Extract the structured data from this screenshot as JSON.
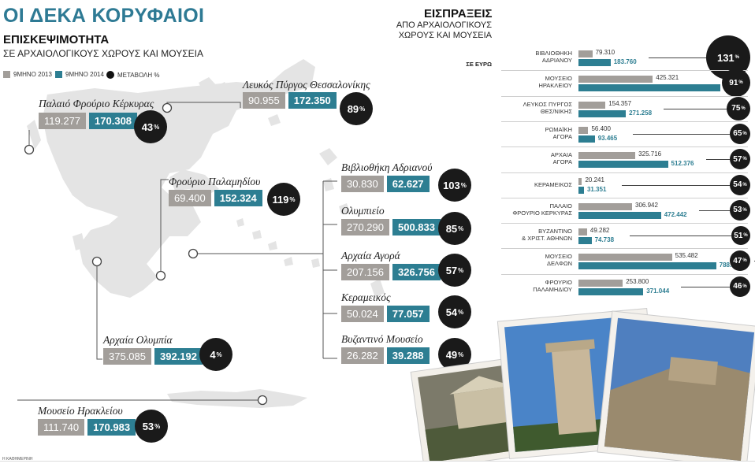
{
  "title": "ΟΙ ΔΕΚΑ ΚΟΡΥΦΑΙΟΙ",
  "visits": {
    "title": "ΕΠΙΣΚΕΨΙΜΟΤΗΤΑ",
    "subtitle": "ΣΕ ΑΡΧΑΙΟΛΟΓΙΚΟΥΣ ΧΩΡΟΥΣ ΚΑΙ ΜΟΥΣΕΙΑ",
    "legend": {
      "y2013": "9ΜΗΝΟ 2013",
      "y2014": "9ΜΗΝΟ 2014",
      "change": "ΜΕΤΑΒΟΛΗ %"
    }
  },
  "revenue": {
    "title": "ΕΙΣΠΡΑΞΕΙΣ",
    "subtitle": "ΑΠΟ ΑΡΧΑΙΟΛΟΓΙΚΟΥΣ ΧΩΡΟΥΣ ΚΑΙ ΜΟΥΣΕΙΑ",
    "unit": "ΣΕ ΕΥΡΩ"
  },
  "footer": "Η ΚΑΘΗΜΕΡΙΝΗ",
  "colors": {
    "accent": "#2d7e92",
    "y2013": "#a29e9a",
    "change": "#1a1a1a",
    "title": "#2e7a94"
  },
  "chart_data": [
    {
      "type": "bar",
      "title": "ΕΠΙΣΚΕΨΙΜΟΤΗΤΑ",
      "subtitle": "ΣΕ ΑΡΧΑΙΟΛΟΓΙΚΟΥΣ ΧΩΡΟΥΣ ΚΑΙ ΜΟΥΣΕΙΑ",
      "categories": [
        "Παλαιό Φρούριο Κέρκυρας",
        "Λευκός Πύργος Θεσσαλονίκης",
        "Φρούριο Παλαμηδίου",
        "Βιβλιοθήκη Αδριανού",
        "Ολυμπιείο",
        "Αρχαία Αγορά",
        "Κεραμεικός",
        "Βυζαντινό Μουσείο",
        "Αρχαία Ολυμπία",
        "Μουσείο Ηρακλείου"
      ],
      "series": [
        {
          "name": "9ΜΗΝΟ 2013",
          "values": [
            "119.277",
            "90.955",
            "69.400",
            "30.830",
            "270.290",
            "207.156",
            "50.024",
            "26.282",
            "375.085",
            "111.740"
          ]
        },
        {
          "name": "9ΜΗΝΟ 2014",
          "values": [
            "170.308",
            "172.350",
            "152.324",
            "62.627",
            "500.833",
            "326.756",
            "77.057",
            "39.288",
            "392.192",
            "170.983"
          ]
        },
        {
          "name": "ΜΕΤΑΒΟΛΗ %",
          "values": [
            "43",
            "89",
            "119",
            "103",
            "85",
            "57",
            "54",
            "49",
            "4",
            "53"
          ]
        }
      ]
    },
    {
      "type": "bar",
      "title": "ΕΙΣΠΡΑΞΕΙΣ",
      "subtitle": "ΑΠΟ ΑΡΧΑΙΟΛΟΓΙΚΟΥΣ ΧΩΡΟΥΣ ΚΑΙ ΜΟΥΣΕΙΑ",
      "ylabel": "ΣΕ ΕΥΡΩ",
      "categories": [
        "ΒΙΒΛΙΟΘΗΚΗ\nΑΔΡΙΑΝΟΥ",
        "ΜΟΥΣΕΙΟ\nΗΡΑΚΛΕΙΟΥ",
        "ΛΕΥΚΟΣ ΠΥΡΓΟΣ\nΘΕΣ/ΝΙΚΗΣ",
        "ΡΩΜΑΪΚΗ\nΑΓΟΡΑ",
        "ΑΡΧΑΙΑ\nΑΓΟΡΑ",
        "ΚΕΡΑΜΕΙΚΟΣ",
        "ΠΑΛΑΙΟ\nΦΡΟΥΡΙΟ ΚΕΡΚΥΡΑΣ",
        "ΒΥΖΑΝΤΙΝΟ\n& ΧΡΙΣΤ. ΑΘΗΝΩΝ",
        "ΜΟΥΣΕΙΟ\nΔΕΛΦΩΝ",
        "ΦΡΟΥΡΙΟ\nΠΑΛΑΜΗΔΙΟΥ"
      ],
      "series": [
        {
          "name": "9ΜΗΝΟ 2013",
          "values": [
            "79.310",
            "425.321",
            "154.357",
            "56.400",
            "325.716",
            "20.241",
            "306.942",
            "49.282",
            "535.482",
            "253.800"
          ]
        },
        {
          "name": "9ΜΗΝΟ 2014",
          "values": [
            "183.760",
            "812.221",
            "271.258",
            "93.465",
            "512.376",
            "31.351",
            "472.442",
            "74.738",
            "788.068",
            "371.044"
          ]
        },
        {
          "name": "ΜΕΤΑΒΟΛΗ %",
          "values": [
            "131",
            "91",
            "75",
            "65",
            "57",
            "54",
            "53",
            "51",
            "47",
            "46"
          ]
        }
      ]
    }
  ]
}
